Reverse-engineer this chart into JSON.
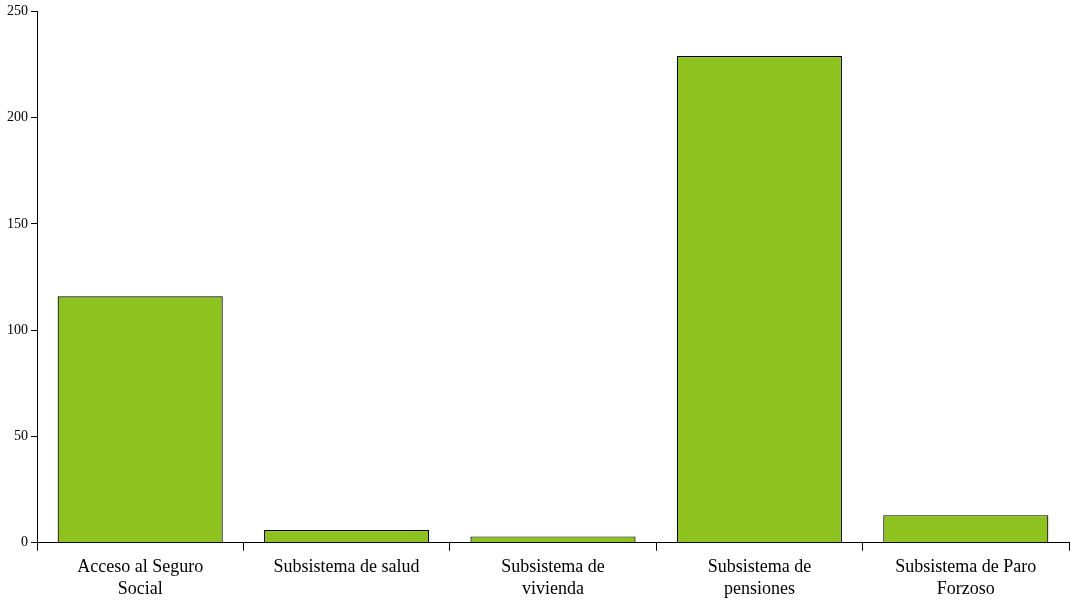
{
  "chart_data": {
    "type": "bar",
    "categories": [
      "Acceso al Seguro Social",
      "Subsistema de salud",
      "Subsistema de vivienda",
      "Subsistema de pensiones",
      "Subsistema de Paro Forzoso"
    ],
    "values": [
      116,
      6,
      3,
      229,
      13
    ],
    "color": "#8dc21f",
    "ylim": [
      0,
      250
    ],
    "yticks": [
      0,
      50,
      100,
      150,
      200,
      250
    ],
    "grid": false,
    "legend": false
  }
}
